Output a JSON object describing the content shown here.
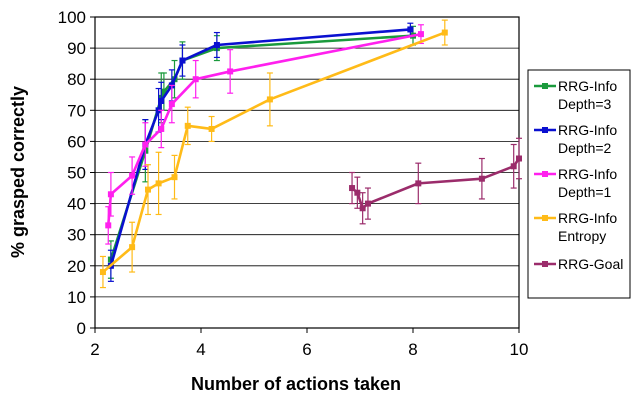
{
  "chart_data": {
    "type": "line",
    "title": "",
    "xlabel": "Number of actions taken",
    "ylabel": "% grasped correctly",
    "xlim": [
      2,
      10
    ],
    "ylim": [
      0,
      100
    ],
    "xticks": [
      2,
      4,
      6,
      8,
      10
    ],
    "yticks": [
      0,
      10,
      20,
      30,
      40,
      50,
      60,
      70,
      80,
      90,
      100
    ],
    "grid": "horizontal",
    "legend": "right",
    "series": [
      {
        "name": "RRG-Info Depth=3",
        "legend_lines": [
          "RRG-Info",
          "Depth=3"
        ],
        "color": "#1a9a3c",
        "points": [
          {
            "x": 2.3,
            "y": 22,
            "err": 6
          },
          {
            "x": 2.95,
            "y": 57,
            "err": 10
          },
          {
            "x": 3.25,
            "y": 74,
            "err": 8
          },
          {
            "x": 3.3,
            "y": 76,
            "err": 6
          },
          {
            "x": 3.5,
            "y": 80,
            "err": 6
          },
          {
            "x": 3.65,
            "y": 86,
            "err": 6
          },
          {
            "x": 4.3,
            "y": 90,
            "err": 4
          },
          {
            "x": 8.0,
            "y": 94,
            "err": 3
          }
        ]
      },
      {
        "name": "RRG-Info Depth=2",
        "legend_lines": [
          "RRG-Info",
          "Depth=2"
        ],
        "color": "#0a10d0",
        "points": [
          {
            "x": 2.3,
            "y": 20,
            "err": 5
          },
          {
            "x": 2.95,
            "y": 59,
            "err": 8
          },
          {
            "x": 3.2,
            "y": 70,
            "err": 7
          },
          {
            "x": 3.25,
            "y": 73,
            "err": 6
          },
          {
            "x": 3.45,
            "y": 78,
            "err": 5
          },
          {
            "x": 3.65,
            "y": 86,
            "err": 5
          },
          {
            "x": 4.3,
            "y": 91,
            "err": 4
          },
          {
            "x": 7.95,
            "y": 96,
            "err": 2
          }
        ]
      },
      {
        "name": "RRG-Info Depth=1",
        "legend_lines": [
          "RRG-Info",
          "Depth=1"
        ],
        "color": "#ff20ee",
        "points": [
          {
            "x": 2.25,
            "y": 33,
            "err": 6
          },
          {
            "x": 2.3,
            "y": 43,
            "err": 7
          },
          {
            "x": 2.7,
            "y": 49,
            "err": 6
          },
          {
            "x": 2.95,
            "y": 59,
            "err": 7
          },
          {
            "x": 3.25,
            "y": 64,
            "err": 6
          },
          {
            "x": 3.45,
            "y": 72,
            "err": 6
          },
          {
            "x": 3.9,
            "y": 80,
            "err": 6
          },
          {
            "x": 4.55,
            "y": 82.5,
            "err": 7
          },
          {
            "x": 8.15,
            "y": 94.5,
            "err": 3
          }
        ]
      },
      {
        "name": "RRG-Info Entropy",
        "legend_lines": [
          "RRG-Info",
          "Entropy"
        ],
        "color": "#ffbb18",
        "points": [
          {
            "x": 2.15,
            "y": 18,
            "err": 5
          },
          {
            "x": 2.7,
            "y": 26,
            "err": 8
          },
          {
            "x": 3.0,
            "y": 44.5,
            "err": 8
          },
          {
            "x": 3.2,
            "y": 46.5,
            "err": 10
          },
          {
            "x": 3.5,
            "y": 48.5,
            "err": 7
          },
          {
            "x": 3.75,
            "y": 65,
            "err": 6
          },
          {
            "x": 4.2,
            "y": 64,
            "err": 4
          },
          {
            "x": 5.3,
            "y": 73.5,
            "err": 8.5
          },
          {
            "x": 8.6,
            "y": 95,
            "err": 4
          }
        ]
      },
      {
        "name": "RRG-Goal",
        "legend_lines": [
          "RRG-Goal"
        ],
        "color": "#9b2c6b",
        "points": [
          {
            "x": 6.85,
            "y": 45,
            "err": 5
          },
          {
            "x": 6.95,
            "y": 43.5,
            "err": 5
          },
          {
            "x": 7.05,
            "y": 38.5,
            "err": 5
          },
          {
            "x": 7.15,
            "y": 40,
            "err": 5
          },
          {
            "x": 8.1,
            "y": 46.5,
            "err": 6.5
          },
          {
            "x": 9.3,
            "y": 48,
            "err": 6.5
          },
          {
            "x": 9.9,
            "y": 52,
            "err": 7
          },
          {
            "x": 10.0,
            "y": 54.5,
            "err": 6.5
          }
        ]
      }
    ]
  }
}
